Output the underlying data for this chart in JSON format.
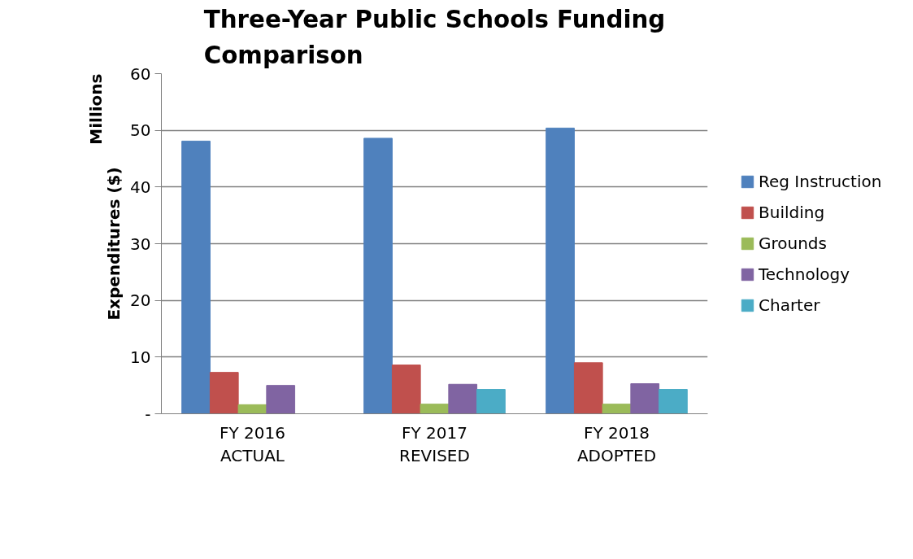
{
  "chart_data": {
    "type": "bar",
    "title": "Three-Year Public Schools Funding Comparison",
    "ylabel": "Expenditures ($)",
    "annotations": [
      "Millions"
    ],
    "categories": [
      "FY 2016\nACTUAL",
      "FY 2017\nREVISED",
      "FY 2018\nADOPTED"
    ],
    "series": [
      {
        "name": "Reg Instruction",
        "color": "#4f81bd",
        "values": [
          48.1,
          48.6,
          50.4
        ]
      },
      {
        "name": "Building",
        "color": "#c0504d",
        "values": [
          7.3,
          8.6,
          9.0
        ]
      },
      {
        "name": "Grounds",
        "color": "#9bbb59",
        "values": [
          1.6,
          1.7,
          1.7
        ]
      },
      {
        "name": "Technology",
        "color": "#8064a2",
        "values": [
          5.0,
          5.2,
          5.3
        ]
      },
      {
        "name": "Charter",
        "color": "#4bacc6",
        "values": [
          null,
          4.3,
          4.3
        ]
      }
    ],
    "ylim": [
      0,
      60
    ],
    "yticks": [
      {
        "value": 0,
        "label": "-"
      },
      10,
      20,
      30,
      40,
      50,
      60
    ],
    "grid": "y",
    "legend": "right"
  }
}
